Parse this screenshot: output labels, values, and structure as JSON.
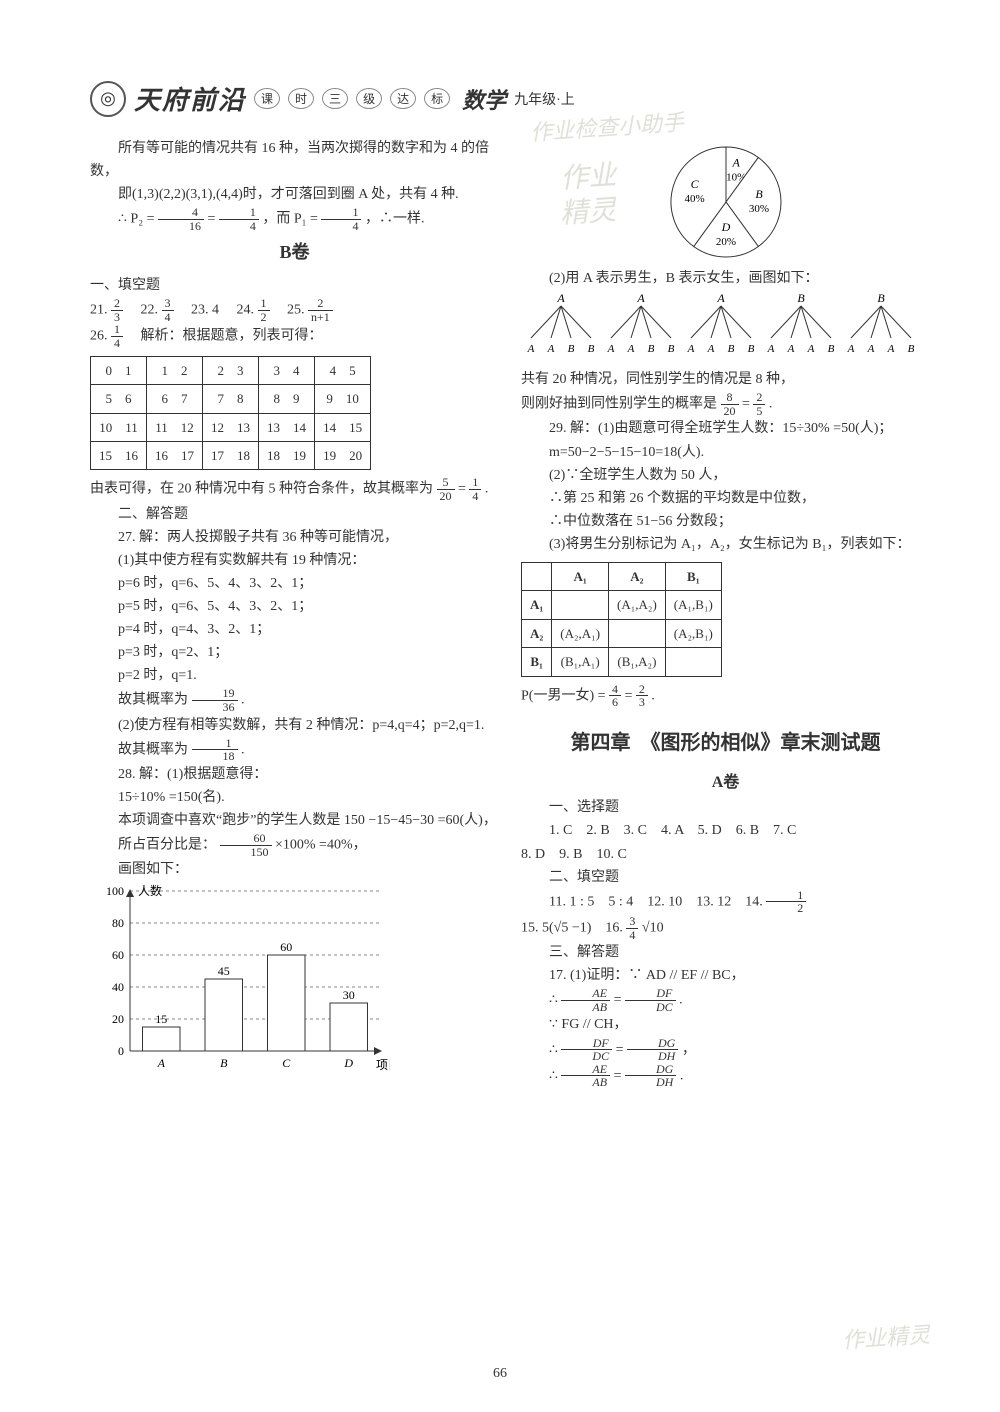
{
  "header": {
    "brand": "天府前沿",
    "pill1": "课",
    "pill2": "时",
    "pill3": "三",
    "pill4": "级",
    "pill5": "达",
    "pill6": "标",
    "subject": "数学",
    "grade": "九年级·上"
  },
  "watermarks": {
    "w1": "作业",
    "w2": "精灵",
    "w3": "作业检查小助手",
    "w4": "作业精灵"
  },
  "left": {
    "p1": "所有等可能的情况共有 16 种，当两次掷得的数字和为 4 的倍数，",
    "p2": "即(1,3)(2,2)(3,1),(4,4)时，才可落回到圈 A 处，共有 4 种.",
    "p3_pre": "∴ P₂ =",
    "p3_eq": " = ",
    "p3_mid": "，而 P₁ =",
    "p3_end": "，∴一样.",
    "f4_16_n": "4",
    "f4_16_d": "16",
    "f1_4_n": "1",
    "f1_4_d": "4",
    "bjuan": "B卷",
    "fill_label": "一、填空题",
    "q21_label": "21.",
    "q21_n": "2",
    "q21_d": "3",
    "q22_label": "22.",
    "q22_n": "3",
    "q22_d": "4",
    "q23": "23. 4",
    "q24_label": "24.",
    "q24_n": "1",
    "q24_d": "2",
    "q25_label": "25.",
    "q25_n": "2",
    "q25_d": "n+1",
    "q26_label": "26.",
    "q26_n": "1",
    "q26_d": "4",
    "q26_tail": "　解析：根据题意，列表可得：",
    "table20": {
      "rows": [
        [
          "0",
          "1",
          "1",
          "2",
          "2",
          "3",
          "3",
          "4",
          "4",
          "5"
        ],
        [
          "5",
          "6",
          "6",
          "7",
          "7",
          "8",
          "8",
          "9",
          "9",
          "10"
        ],
        [
          "10",
          "11",
          "11",
          "12",
          "12",
          "13",
          "13",
          "14",
          "14",
          "15"
        ],
        [
          "15",
          "16",
          "16",
          "17",
          "17",
          "18",
          "18",
          "19",
          "19",
          "20"
        ]
      ]
    },
    "after_table_1": "由表可得，在 20 种情况中有 5 种符合条件，故其概率为",
    "f5_20_n": "5",
    "f5_20_d": "20",
    "after_table_eq": " = ",
    "after_table_end": ".",
    "ans_label": "二、解答题",
    "q27_1": "27. 解：两人投掷骰子共有 36 种等可能情况，",
    "q27_2": "(1)其中使方程有实数解共有 19 种情况：",
    "q27_l1": "p=6 时，q=6、5、4、3、2、1；",
    "q27_l2": "p=5 时，q=6、5、4、3、2、1；",
    "q27_l3": "p=4 时，q=4、3、2、1；",
    "q27_l4": "p=3 时，q=2、1；",
    "q27_l5": "p=2 时，q=1.",
    "q27_res_pre": "故其概率为",
    "f19_36_n": "19",
    "f19_36_d": "36",
    "q27_res_end": ".",
    "q27_3": "(2)使方程有相等实数解，共有 2 种情况：p=4,q=4；p=2,q=1.",
    "q27_res2_pre": "故其概率为",
    "f1_18_n": "1",
    "f1_18_d": "18",
    "q27_res2_end": ".",
    "q28_1": "28. 解：(1)根据题意得：",
    "q28_2": "15÷10% =150(名).",
    "q28_3": "本项调查中喜欢“跑步”的学生人数是 150 −15−45−30 =60(人)，",
    "q28_4_pre": "所占百分比是：",
    "f60_150_n": "60",
    "f60_150_d": "150",
    "q28_4_mid": "×100% =40%，",
    "q28_5": "画图如下：",
    "barchart": {
      "ylabel": "人数",
      "xlabel": "项目",
      "categories": [
        "A",
        "B",
        "C",
        "D"
      ],
      "values": [
        15,
        45,
        60,
        30
      ],
      "value_labels": [
        "15",
        "45",
        "60",
        "30"
      ],
      "ylim": [
        0,
        100
      ],
      "ytick_step": 20,
      "bar_fill": "#ffffff",
      "bar_stroke": "#333333",
      "grid_color": "#888888",
      "axis_color": "#333333",
      "label_fontsize": 12
    }
  },
  "right": {
    "pie": {
      "slices": [
        {
          "label": "A",
          "pct": "10%",
          "start": 0,
          "end": 36,
          "color": "#ffffff"
        },
        {
          "label": "B",
          "pct": "30%",
          "start": 36,
          "end": 144,
          "color": "#ffffff"
        },
        {
          "label": "D",
          "pct": "20%",
          "start": 144,
          "end": 216,
          "color": "#ffffff"
        },
        {
          "label": "C",
          "pct": "40%",
          "start": 216,
          "end": 360,
          "color": "#ffffff"
        }
      ],
      "stroke": "#333333",
      "radius": 55
    },
    "p_tree_intro": "(2)用 A 表示男生，B 表示女生，画图如下：",
    "tree": {
      "roots": [
        "A",
        "A",
        "A",
        "B",
        "B"
      ],
      "leaves": [
        [
          "A",
          "A",
          "B",
          "B"
        ],
        [
          "A",
          "A",
          "B",
          "B"
        ],
        [
          "A",
          "A",
          "B",
          "B"
        ],
        [
          "A",
          "A",
          "A",
          "B"
        ],
        [
          "A",
          "A",
          "A",
          "B"
        ]
      ],
      "stroke": "#333333"
    },
    "p_tree_1": "共有 20 种情况，同性别学生的情况是 8 种，",
    "p_tree_2_pre": "则刚好抽到同性别学生的概率是",
    "f8_20_n": "8",
    "f8_20_d": "20",
    "eq": " = ",
    "f2_5_n": "2",
    "f2_5_d": "5",
    "p_tree_2_end": ".",
    "q29_1": "29. 解：(1)由题意可得全班学生人数：15÷30% =50(人)；",
    "q29_2": "m=50−2−5−15−10=18(人).",
    "q29_3": "(2)∵全班学生人数为 50 人，",
    "q29_4": "∴第 25 和第 26 个数据的平均数是中位数，",
    "q29_5": "∴中位数落在 51−56 分数段；",
    "q29_6": "(3)将男生分别标记为 A₁，A₂，女生标记为 B₁，列表如下：",
    "pair_table": {
      "headers": [
        "",
        "A₁",
        "A₂",
        "B₁"
      ],
      "rows": [
        [
          "A₁",
          "",
          "(A₁,A₂)",
          "(A₁,B₁)"
        ],
        [
          "A₂",
          "(A₂,A₁)",
          "",
          "(A₂,B₁)"
        ],
        [
          "B₁",
          "(B₁,A₁)",
          "(B₁,A₂)",
          ""
        ]
      ]
    },
    "pair_res_pre": "P(一男一女) =",
    "f4_6_n": "4",
    "f4_6_d": "6",
    "eq2": " = ",
    "f2_3_n": "2",
    "f2_3_d": "3",
    "pair_res_end": ".",
    "chapter_title": "第四章　《图形的相似》章末测试题",
    "ajuan": "A卷",
    "mc_label": "一、选择题",
    "mc_line1": "1. C　2. B　3. C　4. A　5. D　6. B　7. C",
    "mc_line2": "8. D　9. B　10. C",
    "fb_label": "二、填空题",
    "fb_line1_a": "11. 1 : 5　5 : 4　12. 10　13. 12　14.",
    "f1_2_n": "1",
    "f1_2_d": "2",
    "fb_line2_a": "15. 5(√5 −1)　16.",
    "f3_4_n": "3",
    "f3_4_d": "4",
    "fb_line2_b": "√10",
    "sa_label": "三、解答题",
    "q17_1": "17. (1)证明：∵ AD // EF // BC，",
    "q17_2_pre": "∴",
    "fr1_n": "AE",
    "fr1_d": "AB",
    "q17_eq": " = ",
    "fr2_n": "DF",
    "fr2_d": "DC",
    "q17_2_end": ".",
    "q17_3": "∵ FG // CH，",
    "q17_4_pre": "∴",
    "fr3_n": "DF",
    "fr3_d": "DC",
    "fr4_n": "DG",
    "fr4_d": "DH",
    "q17_4_end": "，",
    "q17_5_pre": "∴",
    "fr5_n": "AE",
    "fr5_d": "AB",
    "fr6_n": "DG",
    "fr6_d": "DH",
    "q17_5_end": "."
  },
  "pagenum": "66"
}
